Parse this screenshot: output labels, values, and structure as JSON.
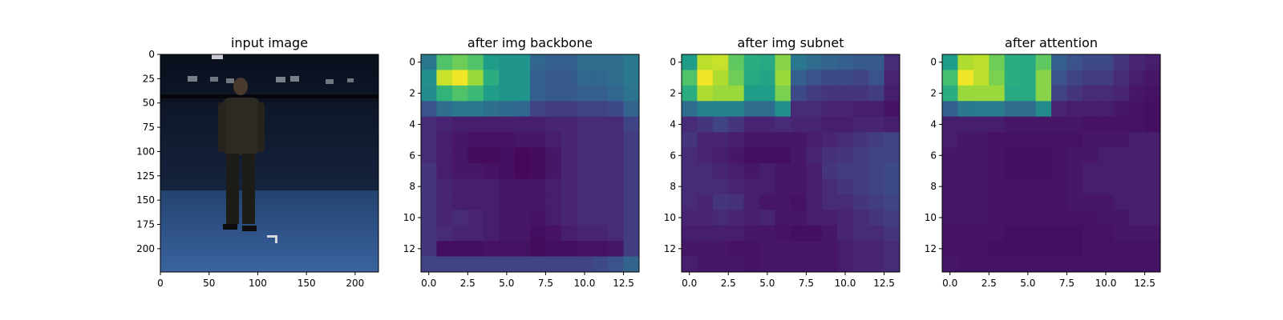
{
  "chart_data": [
    {
      "type": "image",
      "title": "input image",
      "x_ticks": [
        "0",
        "50",
        "100",
        "150",
        "200"
      ],
      "y_ticks": [
        "0",
        "25",
        "50",
        "75",
        "100",
        "125",
        "150",
        "175",
        "200"
      ],
      "xlim": [
        0,
        224
      ],
      "ylim": [
        224,
        0
      ],
      "grid": false
    },
    {
      "type": "heatmap",
      "title": "after img backbone",
      "colormap": "viridis",
      "x_ticks": [
        "0.0",
        "2.5",
        "5.0",
        "7.5",
        "10.0",
        "12.5"
      ],
      "y_ticks": [
        "0",
        "2",
        "4",
        "6",
        "8",
        "10",
        "12"
      ],
      "xlim": [
        -0.5,
        13.5
      ],
      "ylim": [
        13.5,
        -0.5
      ],
      "grid": false,
      "values": [
        [
          0.4,
          0.72,
          0.78,
          0.72,
          0.55,
          0.52,
          0.52,
          0.33,
          0.3,
          0.3,
          0.35,
          0.35,
          0.35,
          0.4
        ],
        [
          0.5,
          0.92,
          0.98,
          0.85,
          0.62,
          0.52,
          0.52,
          0.3,
          0.28,
          0.28,
          0.33,
          0.33,
          0.35,
          0.4
        ],
        [
          0.48,
          0.65,
          0.72,
          0.68,
          0.55,
          0.52,
          0.52,
          0.3,
          0.28,
          0.28,
          0.3,
          0.3,
          0.33,
          0.38
        ],
        [
          0.25,
          0.35,
          0.4,
          0.4,
          0.36,
          0.34,
          0.33,
          0.2,
          0.18,
          0.18,
          0.2,
          0.2,
          0.22,
          0.32
        ],
        [
          0.12,
          0.1,
          0.08,
          0.08,
          0.08,
          0.08,
          0.08,
          0.08,
          0.1,
          0.1,
          0.12,
          0.12,
          0.12,
          0.2
        ],
        [
          0.12,
          0.08,
          0.06,
          0.05,
          0.05,
          0.05,
          0.06,
          0.06,
          0.08,
          0.1,
          0.12,
          0.12,
          0.12,
          0.18
        ],
        [
          0.12,
          0.08,
          0.06,
          0.03,
          0.03,
          0.04,
          0.02,
          0.03,
          0.06,
          0.1,
          0.12,
          0.12,
          0.12,
          0.18
        ],
        [
          0.15,
          0.08,
          0.06,
          0.06,
          0.05,
          0.04,
          0.02,
          0.03,
          0.06,
          0.1,
          0.12,
          0.12,
          0.12,
          0.18
        ],
        [
          0.15,
          0.1,
          0.08,
          0.08,
          0.08,
          0.06,
          0.06,
          0.06,
          0.08,
          0.1,
          0.12,
          0.12,
          0.12,
          0.18
        ],
        [
          0.15,
          0.1,
          0.08,
          0.08,
          0.08,
          0.06,
          0.06,
          0.06,
          0.08,
          0.1,
          0.12,
          0.12,
          0.12,
          0.18
        ],
        [
          0.15,
          0.1,
          0.12,
          0.1,
          0.08,
          0.06,
          0.06,
          0.05,
          0.08,
          0.1,
          0.12,
          0.12,
          0.12,
          0.18
        ],
        [
          0.15,
          0.12,
          0.1,
          0.1,
          0.08,
          0.06,
          0.06,
          0.04,
          0.05,
          0.08,
          0.1,
          0.1,
          0.12,
          0.18
        ],
        [
          0.15,
          0.04,
          0.04,
          0.04,
          0.05,
          0.05,
          0.05,
          0.03,
          0.04,
          0.04,
          0.05,
          0.05,
          0.06,
          0.18
        ],
        [
          0.2,
          0.2,
          0.2,
          0.2,
          0.2,
          0.2,
          0.2,
          0.2,
          0.2,
          0.2,
          0.2,
          0.22,
          0.25,
          0.32
        ]
      ]
    },
    {
      "type": "heatmap",
      "title": "after img subnet",
      "colormap": "viridis",
      "x_ticks": [
        "0.0",
        "2.5",
        "5.0",
        "7.5",
        "10.0",
        "12.5"
      ],
      "y_ticks": [
        "0",
        "2",
        "4",
        "6",
        "8",
        "10",
        "12"
      ],
      "xlim": [
        -0.5,
        13.5
      ],
      "ylim": [
        13.5,
        -0.5
      ],
      "grid": false,
      "values": [
        [
          0.55,
          0.9,
          0.92,
          0.75,
          0.62,
          0.6,
          0.82,
          0.4,
          0.35,
          0.32,
          0.3,
          0.28,
          0.28,
          0.12
        ],
        [
          0.72,
          0.98,
          0.88,
          0.78,
          0.6,
          0.58,
          0.85,
          0.3,
          0.25,
          0.22,
          0.22,
          0.2,
          0.25,
          0.1
        ],
        [
          0.62,
          0.88,
          0.85,
          0.85,
          0.55,
          0.55,
          0.8,
          0.22,
          0.18,
          0.15,
          0.15,
          0.15,
          0.18,
          0.08
        ],
        [
          0.35,
          0.45,
          0.45,
          0.45,
          0.35,
          0.35,
          0.5,
          0.12,
          0.12,
          0.1,
          0.1,
          0.08,
          0.08,
          0.05
        ],
        [
          0.12,
          0.15,
          0.2,
          0.15,
          0.1,
          0.1,
          0.12,
          0.1,
          0.1,
          0.08,
          0.08,
          0.1,
          0.1,
          0.08
        ],
        [
          0.15,
          0.1,
          0.1,
          0.08,
          0.06,
          0.06,
          0.06,
          0.06,
          0.08,
          0.1,
          0.12,
          0.15,
          0.18,
          0.2
        ],
        [
          0.12,
          0.1,
          0.08,
          0.06,
          0.04,
          0.04,
          0.04,
          0.06,
          0.1,
          0.14,
          0.15,
          0.18,
          0.2,
          0.2
        ],
        [
          0.12,
          0.12,
          0.1,
          0.08,
          0.06,
          0.08,
          0.06,
          0.06,
          0.08,
          0.15,
          0.18,
          0.18,
          0.2,
          0.22
        ],
        [
          0.12,
          0.12,
          0.12,
          0.1,
          0.08,
          0.08,
          0.06,
          0.06,
          0.08,
          0.12,
          0.15,
          0.18,
          0.2,
          0.22
        ],
        [
          0.12,
          0.1,
          0.15,
          0.14,
          0.08,
          0.06,
          0.06,
          0.05,
          0.08,
          0.12,
          0.12,
          0.15,
          0.18,
          0.2
        ],
        [
          0.1,
          0.1,
          0.12,
          0.1,
          0.08,
          0.1,
          0.06,
          0.06,
          0.08,
          0.08,
          0.1,
          0.12,
          0.15,
          0.18
        ],
        [
          0.08,
          0.08,
          0.08,
          0.08,
          0.06,
          0.06,
          0.05,
          0.04,
          0.04,
          0.06,
          0.1,
          0.12,
          0.12,
          0.15
        ],
        [
          0.06,
          0.06,
          0.06,
          0.05,
          0.05,
          0.06,
          0.06,
          0.06,
          0.06,
          0.06,
          0.08,
          0.1,
          0.1,
          0.12
        ],
        [
          0.08,
          0.06,
          0.06,
          0.06,
          0.05,
          0.06,
          0.06,
          0.06,
          0.06,
          0.06,
          0.08,
          0.1,
          0.1,
          0.12
        ]
      ]
    },
    {
      "type": "heatmap",
      "title": "after attention",
      "colormap": "viridis",
      "x_ticks": [
        "0.0",
        "2.5",
        "5.0",
        "7.5",
        "10.0",
        "12.5"
      ],
      "y_ticks": [
        "0",
        "2",
        "4",
        "6",
        "8",
        "10",
        "12"
      ],
      "xlim": [
        -0.5,
        13.5
      ],
      "ylim": [
        13.5,
        -0.5
      ],
      "grid": false,
      "values": [
        [
          0.55,
          0.88,
          0.9,
          0.78,
          0.62,
          0.6,
          0.75,
          0.3,
          0.25,
          0.22,
          0.22,
          0.15,
          0.1,
          0.08
        ],
        [
          0.7,
          0.98,
          0.9,
          0.8,
          0.62,
          0.6,
          0.82,
          0.25,
          0.2,
          0.18,
          0.18,
          0.12,
          0.08,
          0.06
        ],
        [
          0.62,
          0.85,
          0.85,
          0.85,
          0.6,
          0.6,
          0.82,
          0.2,
          0.15,
          0.12,
          0.12,
          0.1,
          0.06,
          0.05
        ],
        [
          0.3,
          0.4,
          0.42,
          0.42,
          0.35,
          0.35,
          0.48,
          0.1,
          0.08,
          0.08,
          0.08,
          0.06,
          0.05,
          0.04
        ],
        [
          0.08,
          0.08,
          0.08,
          0.08,
          0.06,
          0.06,
          0.06,
          0.06,
          0.06,
          0.05,
          0.05,
          0.05,
          0.05,
          0.04
        ],
        [
          0.08,
          0.06,
          0.06,
          0.05,
          0.05,
          0.05,
          0.05,
          0.05,
          0.05,
          0.06,
          0.06,
          0.06,
          0.08,
          0.08
        ],
        [
          0.06,
          0.06,
          0.06,
          0.05,
          0.04,
          0.04,
          0.04,
          0.05,
          0.06,
          0.06,
          0.08,
          0.08,
          0.08,
          0.08
        ],
        [
          0.06,
          0.06,
          0.06,
          0.05,
          0.04,
          0.04,
          0.04,
          0.05,
          0.06,
          0.08,
          0.08,
          0.08,
          0.08,
          0.08
        ],
        [
          0.06,
          0.06,
          0.06,
          0.05,
          0.05,
          0.05,
          0.05,
          0.05,
          0.06,
          0.08,
          0.08,
          0.08,
          0.08,
          0.08
        ],
        [
          0.06,
          0.06,
          0.06,
          0.05,
          0.05,
          0.05,
          0.05,
          0.05,
          0.06,
          0.06,
          0.06,
          0.08,
          0.08,
          0.08
        ],
        [
          0.06,
          0.06,
          0.06,
          0.05,
          0.05,
          0.05,
          0.05,
          0.05,
          0.05,
          0.05,
          0.06,
          0.06,
          0.08,
          0.08
        ],
        [
          0.05,
          0.05,
          0.05,
          0.05,
          0.04,
          0.04,
          0.04,
          0.04,
          0.04,
          0.05,
          0.05,
          0.06,
          0.06,
          0.06
        ],
        [
          0.05,
          0.05,
          0.05,
          0.04,
          0.04,
          0.04,
          0.04,
          0.04,
          0.04,
          0.05,
          0.05,
          0.05,
          0.05,
          0.05
        ],
        [
          0.06,
          0.05,
          0.05,
          0.05,
          0.05,
          0.05,
          0.05,
          0.05,
          0.05,
          0.05,
          0.05,
          0.05,
          0.05,
          0.05
        ]
      ]
    }
  ]
}
